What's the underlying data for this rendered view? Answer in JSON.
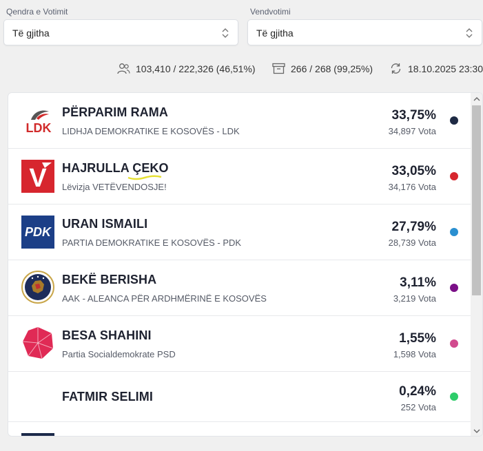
{
  "filters": {
    "center_label": "Qendra e Votimit",
    "center_value": "Të gjitha",
    "station_label": "Vendvotimi",
    "station_value": "Të gjitha"
  },
  "stats": {
    "voters": "103,410 / 222,326 (46,51%)",
    "boxes": "266 / 268 (99,25%)",
    "updated": "18.10.2025 23:30"
  },
  "candidates": [
    {
      "name": "PËRPARIM RAMA",
      "party": "LIDHJA DEMOKRATIKE E KOSOVËS - LDK",
      "percent": "33,75%",
      "votes": "34,897 Vota",
      "logo_text": "LDK",
      "color": "#1e2a44"
    },
    {
      "name": "HAJRULLA ÇEKO",
      "party": "Lëvizja VETËVENDOSJE!",
      "percent": "33,05%",
      "votes": "34,176 Vota",
      "logo_text": "V",
      "color": "#d7262e"
    },
    {
      "name": "URAN ISMAILI",
      "party": "PARTIA DEMOKRATIKE E KOSOVËS - PDK",
      "percent": "27,79%",
      "votes": "28,739 Vota",
      "logo_text": "PDK",
      "color": "#2a8fd0"
    },
    {
      "name": "BEKË BERISHA",
      "party": "AAK - ALEANCA PËR ARDHMËRINË E KOSOVËS",
      "percent": "3,11%",
      "votes": "3,219 Vota",
      "color": "#7a0f87"
    },
    {
      "name": "BESA SHAHINI",
      "party": "Partia Socialdemokrate PSD",
      "percent": "1,55%",
      "votes": "1,598 Vota",
      "color": "#d14a8e"
    },
    {
      "name": "FATMIR SELIMI",
      "party": "",
      "percent": "0,24%",
      "votes": "252 Vota",
      "color": "#2ecc6a"
    }
  ]
}
